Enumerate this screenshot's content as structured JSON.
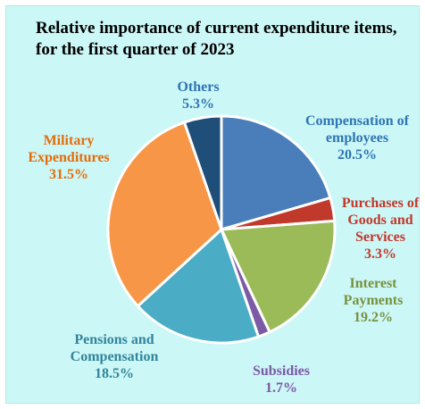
{
  "chart_data": {
    "type": "pie",
    "title": "Relative importance of current expenditure items,  for the first quarter of 2023",
    "slices": [
      {
        "lines": [
          "Compensation of",
          "employees"
        ],
        "percent_label": "20.5%",
        "value": 20.5,
        "color": "#4a7ebb"
      },
      {
        "lines": [
          "Purchases of",
          "Goods and",
          "Services"
        ],
        "percent_label": "3.3%",
        "value": 3.3,
        "color": "#c0392b"
      },
      {
        "lines": [
          "Interest",
          "Payments"
        ],
        "percent_label": "19.2%",
        "value": 19.2,
        "color": "#9bbb59"
      },
      {
        "lines": [
          "Subsidies"
        ],
        "percent_label": "1.7%",
        "value": 1.7,
        "color": "#7b5aa6"
      },
      {
        "lines": [
          "Pensions and",
          "Compensation"
        ],
        "percent_label": "18.5%",
        "value": 18.5,
        "color": "#4bacc6"
      },
      {
        "lines": [
          "Military",
          "Expenditures"
        ],
        "percent_label": "31.5%",
        "value": 31.5,
        "color": "#f79646"
      },
      {
        "lines": [
          "Others"
        ],
        "percent_label": "5.3%",
        "value": 5.3,
        "color": "#1f4e79"
      }
    ],
    "label_colors": [
      "#2e75b6",
      "#c0392b",
      "#76923c",
      "#7b5aa6",
      "#31849b",
      "#e36c09",
      "#2e75b6"
    ]
  }
}
